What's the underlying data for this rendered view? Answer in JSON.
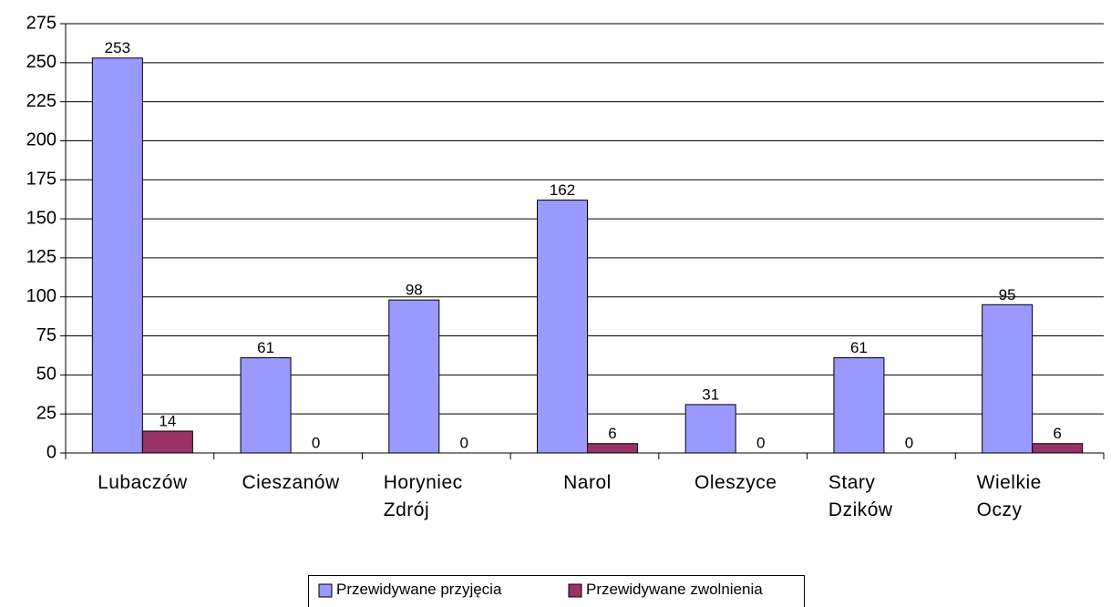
{
  "chart_data": {
    "type": "bar",
    "categories": [
      "Lubaczów",
      "Cieszanów",
      "Horyniec Zdrój",
      "Narol",
      "Oleszyce",
      "Stary Dzików",
      "Wielkie Oczy"
    ],
    "series": [
      {
        "name": "Przewidywane przyjęcia",
        "color": "#9999ff",
        "values": [
          253,
          61,
          98,
          162,
          31,
          61,
          95
        ]
      },
      {
        "name": "Przewidywane zwolnienia",
        "color": "#993366",
        "values": [
          14,
          0,
          0,
          6,
          0,
          0,
          6
        ]
      }
    ],
    "ylim": [
      0,
      275
    ],
    "yticks": [
      0,
      25,
      50,
      75,
      100,
      125,
      150,
      175,
      200,
      225,
      250,
      275
    ],
    "grid": true
  }
}
